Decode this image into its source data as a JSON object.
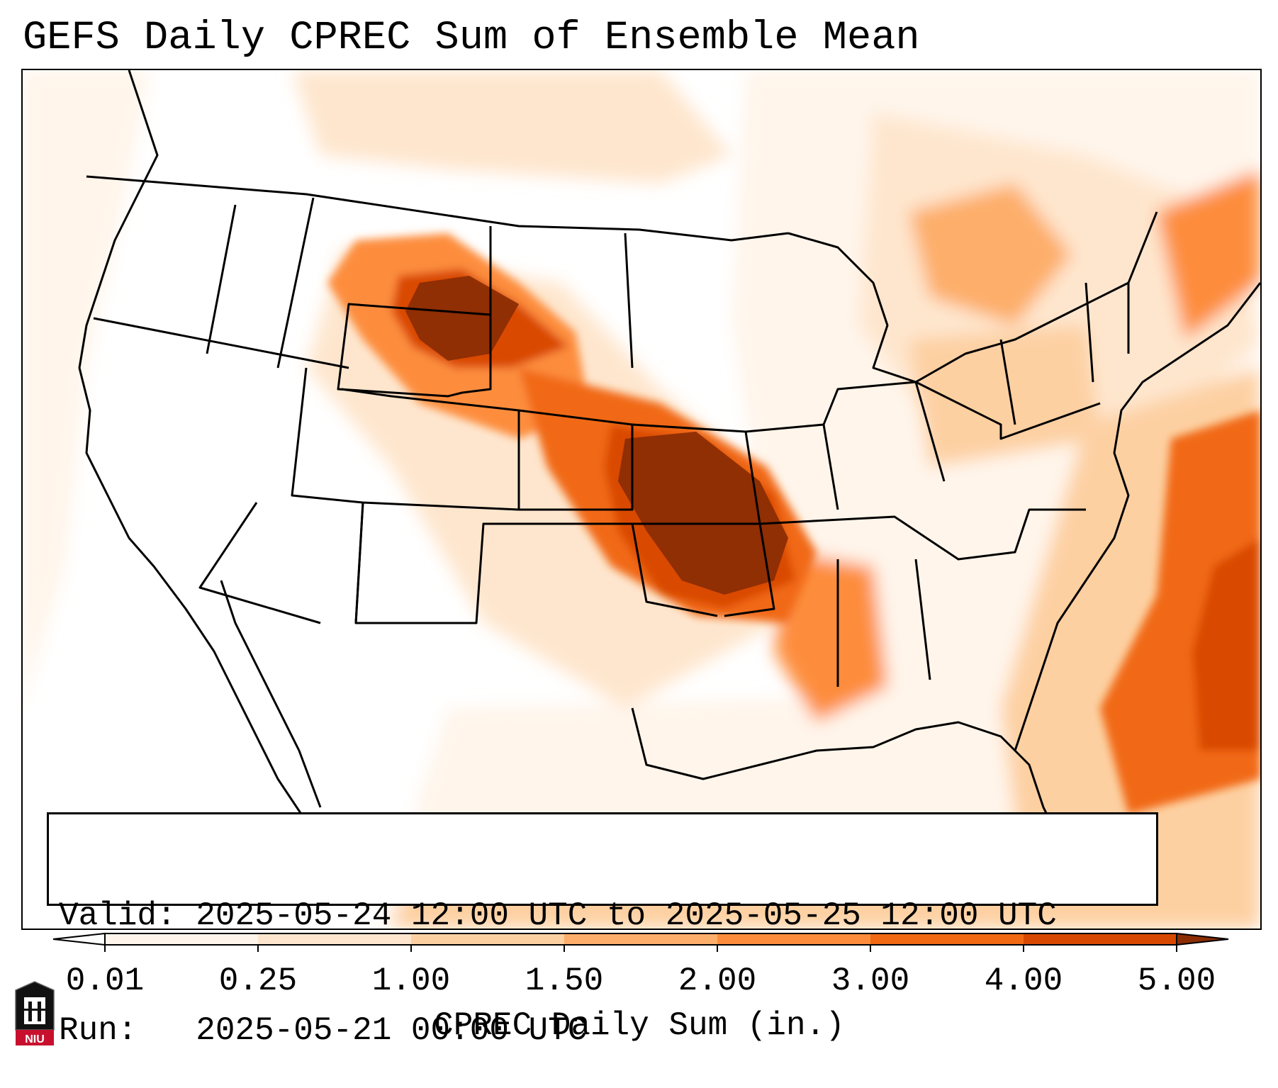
{
  "title": "GEFS Daily CPREC Sum of Ensemble Mean",
  "map": {
    "region": "CONUS",
    "variable": "CPREC",
    "units": "in.",
    "precip_cores": [
      {
        "region": "Wyoming / Montana / South Dakota",
        "level": "5.00"
      },
      {
        "region": "Kansas / Missouri / Oklahoma / Arkansas",
        "level": "5.00"
      },
      {
        "region": "Western Atlantic off Southeast coast",
        "level": "4.00"
      }
    ]
  },
  "info": {
    "valid_label": "Valid:",
    "valid_value": "2025-05-24 12:00 UTC to 2025-05-25 12:00 UTC",
    "run_label": "Run:",
    "run_value": "2025-05-21 00:00 UTC"
  },
  "colorbar": {
    "label": "CPREC Daily Sum (in.)",
    "ticks": [
      "0.01",
      "0.25",
      "1.00",
      "1.50",
      "2.00",
      "3.00",
      "4.00",
      "5.00"
    ],
    "colors": [
      "#fff5eb",
      "#fee6ce",
      "#fdd0a2",
      "#fdae6b",
      "#fd8d3c",
      "#f16913",
      "#d94801",
      "#8c2d04"
    ],
    "extend": "both"
  },
  "logo": {
    "text": "NIU",
    "icon": "niu-logo-icon"
  }
}
